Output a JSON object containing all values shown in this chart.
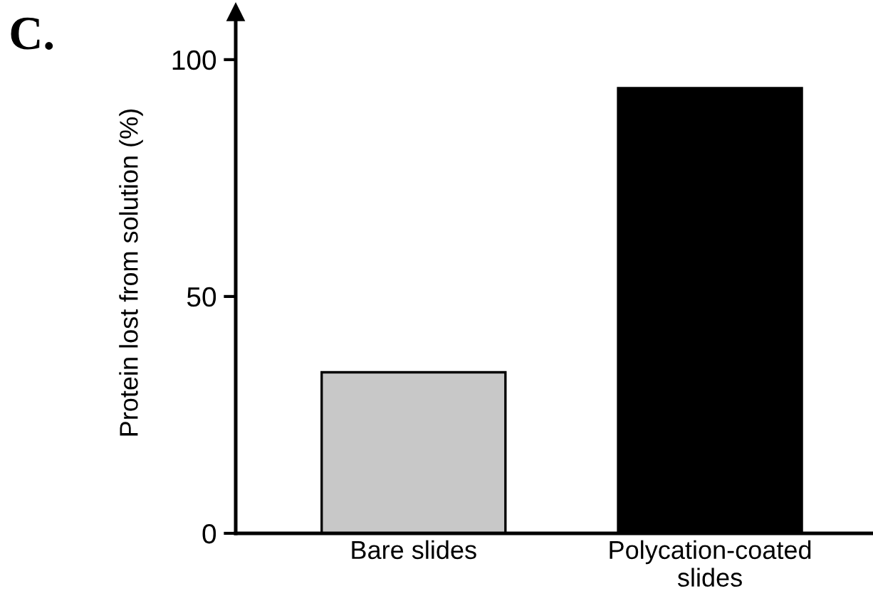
{
  "chart_data": {
    "type": "bar",
    "ylabel": "Protein lost from solution (%)",
    "categories": [
      "Bare slides",
      "Polycation-coated\nslides"
    ],
    "values": [
      34,
      94
    ],
    "colors": [
      "#c8c8c8",
      "#000000"
    ],
    "ylim": [
      0,
      110
    ],
    "yticks": [
      0,
      50,
      100
    ],
    "annotations": [
      "C."
    ]
  }
}
